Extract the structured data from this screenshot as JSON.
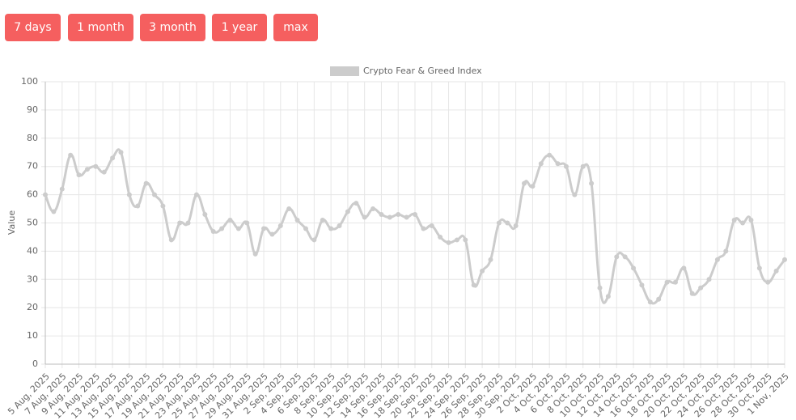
{
  "buttons": [
    "7 days",
    "1 month",
    "3 month",
    "1 year",
    "max"
  ],
  "chart_data": {
    "type": "line",
    "y_label": "Value",
    "categories": [
      "5 Aug, 2025",
      null,
      "7 Aug, 2025",
      null,
      "9 Aug, 2025",
      null,
      "11 Aug, 2025",
      null,
      "13 Aug, 2025",
      null,
      "15 Aug, 2025",
      null,
      "17 Aug, 2025",
      null,
      "19 Aug, 2025",
      null,
      "21 Aug, 2025",
      null,
      "23 Aug, 2025",
      null,
      "25 Aug, 2025",
      null,
      "27 Aug, 2025",
      null,
      "29 Aug, 2025",
      null,
      "31 Aug, 2025",
      null,
      "2 Sep, 2025",
      null,
      "4 Sep, 2025",
      null,
      "6 Sep, 2025",
      null,
      "8 Sep, 2025",
      null,
      "10 Sep, 2025",
      null,
      "12 Sep, 2025",
      null,
      "14 Sep, 2025",
      null,
      "16 Sep, 2025",
      null,
      "18 Sep, 2025",
      null,
      "20 Sep, 2025",
      null,
      "22 Sep, 2025",
      null,
      "24 Sep, 2025",
      null,
      "26 Sep, 2025",
      null,
      "28 Sep, 2025",
      null,
      "30 Sep, 2025",
      null,
      "2 Oct, 2025",
      null,
      "4 Oct, 2025",
      null,
      "6 Oct, 2025",
      null,
      "8 Oct, 2025",
      null,
      "10 Oct, 2025",
      null,
      "12 Oct, 2025",
      null,
      "14 Oct, 2025",
      null,
      "16 Oct, 2025",
      null,
      "18 Oct, 2025",
      null,
      "20 Oct, 2025",
      null,
      "22 Oct, 2025",
      null,
      "24 Oct, 2025",
      null,
      "26 Oct, 2025",
      null,
      "28 Oct, 2025",
      null,
      "30 Oct, 2025",
      null,
      "1 Nov, 2025"
    ],
    "series": [
      {
        "name": "Crypto Fear & Greed Index",
        "color": "#cccccc",
        "values": [
          60,
          54,
          62,
          74,
          67,
          69,
          70,
          68,
          73,
          75,
          60,
          56,
          64,
          60,
          56,
          44,
          50,
          50,
          60,
          53,
          47,
          48,
          51,
          48,
          50,
          39,
          48,
          46,
          49,
          55,
          51,
          48,
          44,
          51,
          48,
          49,
          54,
          57,
          52,
          55,
          53,
          52,
          53,
          52,
          53,
          48,
          49,
          45,
          43,
          44,
          44,
          28,
          33,
          37,
          50,
          50,
          49,
          64,
          63,
          71,
          74,
          71,
          70,
          60,
          70,
          64,
          27,
          24,
          38,
          38,
          34,
          28,
          22,
          23,
          29,
          29,
          34,
          25,
          27,
          30,
          37,
          40,
          51,
          50,
          51,
          34,
          29,
          33,
          37
        ]
      }
    ],
    "ylim": [
      0,
      100
    ],
    "yticks": [
      0,
      10,
      20,
      30,
      40,
      50,
      60,
      70,
      80,
      90,
      100
    ],
    "grid": true
  }
}
